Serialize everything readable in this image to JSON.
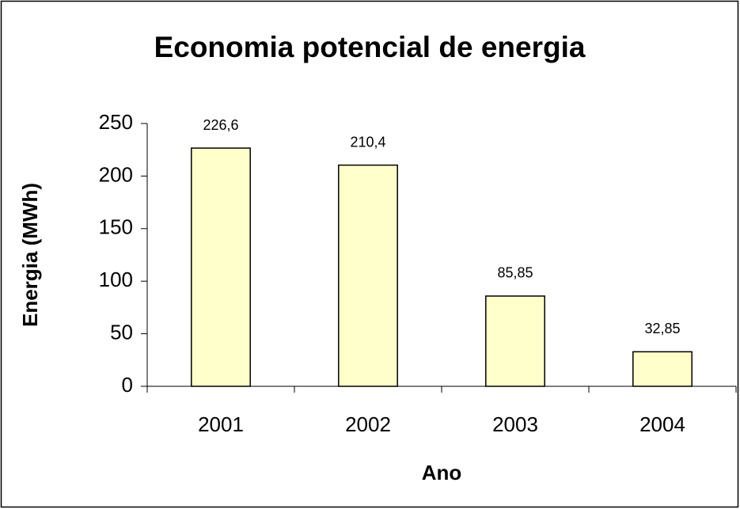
{
  "chart_data": {
    "type": "bar",
    "title": "Economia potencial de energia",
    "x_label": "Ano",
    "y_label": "Energia (MWh)",
    "categories": [
      "2001",
      "2002",
      "2003",
      "2004"
    ],
    "values": [
      226.6,
      210.4,
      85.85,
      32.85
    ],
    "value_labels": [
      "226,6",
      "210,4",
      "85,85",
      "32,85"
    ],
    "color": "#ffffcc",
    "ylim": [
      0,
      250
    ],
    "yticks": [
      0,
      50,
      100,
      150,
      200,
      250
    ],
    "grid": false
  }
}
